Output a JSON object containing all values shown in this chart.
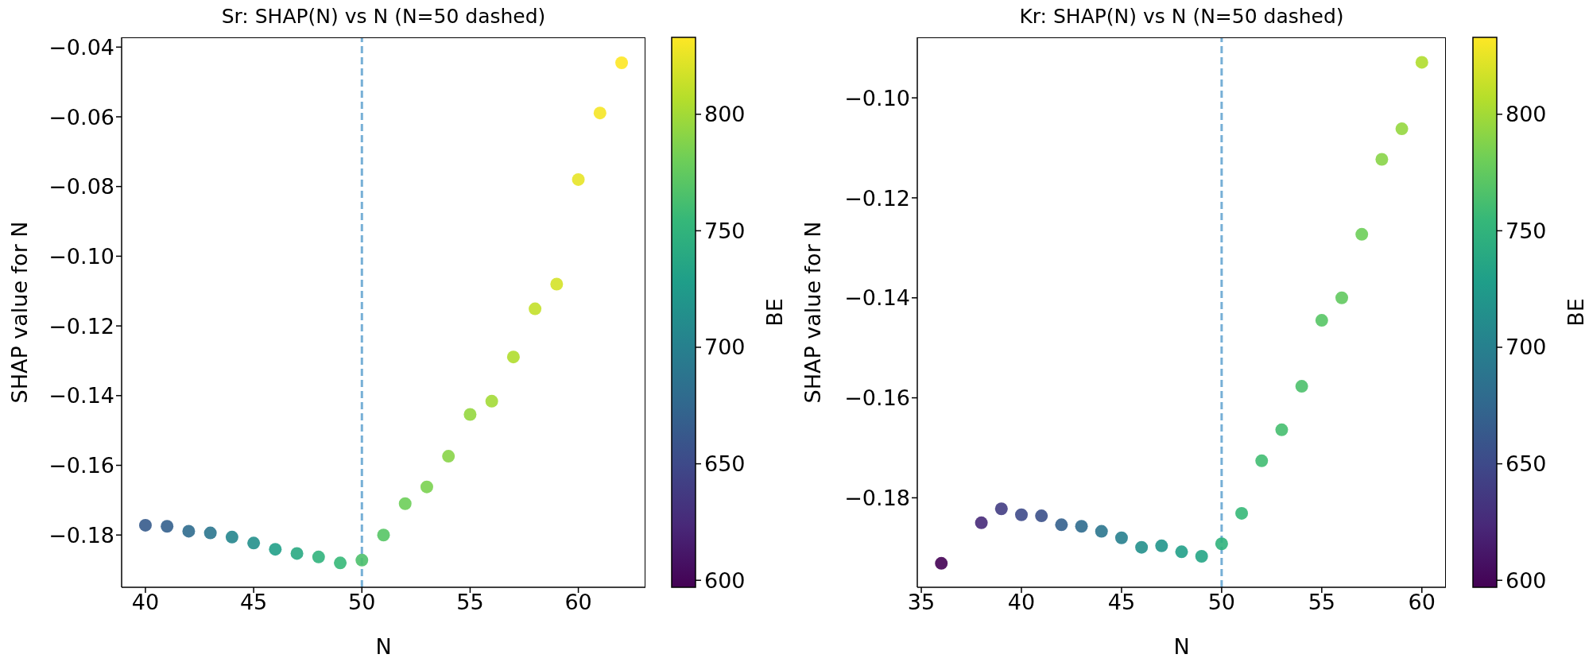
{
  "chart_data": [
    {
      "type": "scatter",
      "title": "Sr: SHAP(N) vs N (N=50 dashed)",
      "xlabel": "N",
      "ylabel": "SHAP value for N",
      "clabel": "BE",
      "x": [
        40,
        41,
        42,
        43,
        44,
        45,
        46,
        47,
        48,
        49,
        50,
        51,
        52,
        53,
        54,
        55,
        56,
        57,
        58,
        59,
        60,
        61,
        62
      ],
      "values": [
        -0.1772,
        -0.1775,
        -0.1789,
        -0.1794,
        -0.1806,
        -0.1823,
        -0.1841,
        -0.1853,
        -0.1863,
        -0.188,
        -0.1872,
        -0.18,
        -0.171,
        -0.1662,
        -0.1574,
        -0.1454,
        -0.1416,
        -0.1289,
        -0.1151,
        -0.108,
        -0.078,
        -0.0589,
        -0.0445
      ],
      "cvalues": [
        665,
        670,
        680,
        690,
        705,
        715,
        730,
        740,
        750,
        755,
        765,
        770,
        780,
        785,
        790,
        795,
        800,
        805,
        812,
        818,
        825,
        830,
        833
      ],
      "clim": [
        597,
        833
      ],
      "cticks": [
        600,
        650,
        700,
        750,
        800
      ],
      "xlim": [
        38.9,
        63.1
      ],
      "xticks": [
        40,
        45,
        50,
        55,
        60
      ],
      "ylim": [
        -0.195,
        -0.0372
      ],
      "yticks": [
        -0.18,
        -0.16,
        -0.14,
        -0.12,
        {
          "value": -0.1,
          "label": "−0.10"
        },
        -0.08,
        -0.06,
        -0.04
      ],
      "ref_lines": [
        {
          "axis": "x",
          "value": 50,
          "color": "#76afd6",
          "line_style": "dashed"
        }
      ],
      "grid": false,
      "marker": "circle"
    },
    {
      "type": "scatter",
      "title": "Kr: SHAP(N) vs N (N=50 dashed)",
      "xlabel": "N",
      "ylabel": "SHAP value for N",
      "clabel": "BE",
      "x": [
        36,
        38,
        39,
        40,
        41,
        42,
        43,
        44,
        45,
        46,
        47,
        48,
        49,
        50,
        51,
        52,
        53,
        54,
        55,
        56,
        57,
        58,
        59,
        60
      ],
      "values": [
        -0.1931,
        -0.185,
        -0.1822,
        -0.1834,
        -0.1836,
        -0.1854,
        -0.1857,
        -0.1867,
        -0.188,
        -0.1899,
        -0.1896,
        -0.1908,
        -0.1917,
        -0.1892,
        -0.1831,
        -0.1726,
        -0.1664,
        -0.1577,
        -0.1445,
        -0.14,
        -0.1273,
        -0.1123,
        -0.1062,
        -0.0929
      ],
      "cvalues": [
        597,
        625,
        640,
        650,
        655,
        670,
        680,
        690,
        700,
        715,
        720,
        730,
        735,
        750,
        755,
        760,
        762,
        765,
        770,
        775,
        780,
        790,
        795,
        805
      ],
      "clim": [
        597,
        833
      ],
      "cticks": [
        600,
        650,
        700,
        750,
        800
      ],
      "xlim": [
        34.8,
        61.2
      ],
      "xticks": [
        35,
        40,
        45,
        50,
        55,
        60
      ],
      "ylim": [
        -0.1979,
        -0.0879
      ],
      "yticks": [
        -0.18,
        -0.16,
        -0.14,
        -0.12,
        {
          "value": -0.1,
          "label": "−0.10"
        }
      ],
      "ref_lines": [
        {
          "axis": "x",
          "value": 50,
          "color": "#76afd6",
          "line_style": "dashed"
        }
      ],
      "grid": false,
      "marker": "circle"
    }
  ]
}
